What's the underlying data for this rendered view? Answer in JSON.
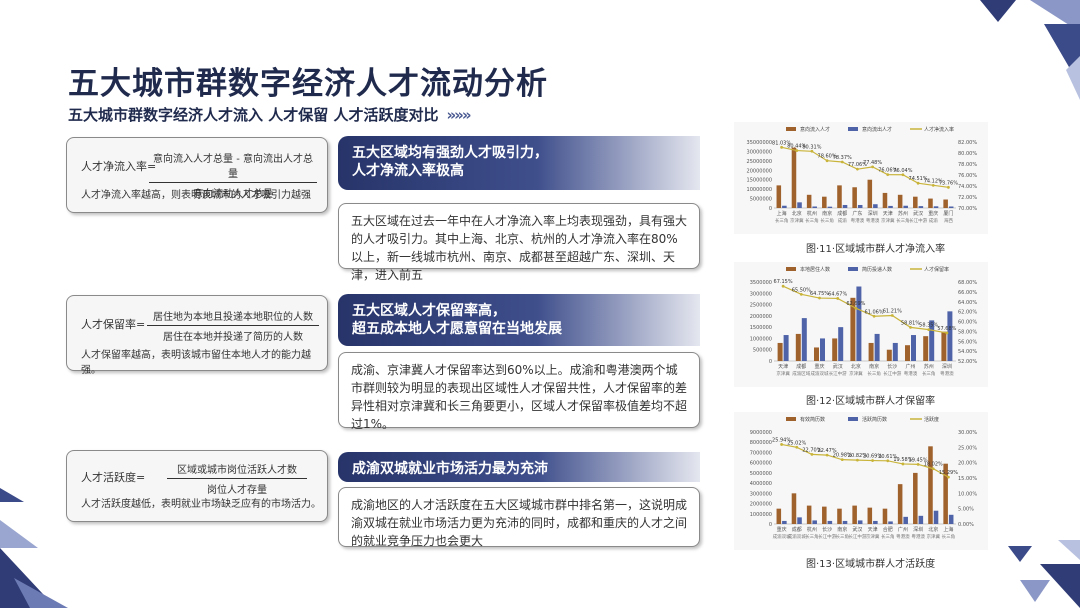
{
  "title": "五大城市群数字经济人才流动分析",
  "subtitle": "五大城市群数字经济人才流入 人才保留 人才活跃度对比",
  "subtitle_arrows": "»»»",
  "formulas": [
    {
      "lhs": "人才净流入率=",
      "num": "意向流入人才总量 - 意向流出人才总量",
      "den": "意向流动人才总量",
      "note": "人才净流入率越高，则表明该城市的人才吸引力越强"
    },
    {
      "lhs": "人才保留率=",
      "num": "居住地为本地且投递本地职位的人数",
      "den": "居住在本地并投递了简历的人数",
      "note": "人才保留率越高，表明该城市留住本地人才的能力越强。"
    },
    {
      "lhs": "人才活跃度=",
      "num": "区域或城市岗位活跃人才数",
      "den": "岗位人才存量",
      "note": "人才活跃度越低，表明就业市场缺乏应有的市场活力。"
    }
  ],
  "sections": [
    {
      "header": "五大区域均有强劲人才吸引力，\n人才净流入率极高",
      "body": "五大区域在过去一年中在人才净流入率上均表现强劲，具有强大的人才吸引力。其中上海、北京、杭州的人才净流入率在80%以上，新一线城市杭州、南京、成都甚至超越广东、深圳、天津，进入前五"
    },
    {
      "header": "五大区域人才保留率高，\n超五成本地人才愿意留在当地发展",
      "body": "成渝、京津冀人才保留率达到60%以上。成渝和粤港澳两个城市群则较为明显的表现出区域性人才保留共性，人才保留率的差异性相对京津冀和长三角要更小，区域人才保留率极值差均不超过1%。"
    },
    {
      "header": "成渝双城就业市场活力最为充沛",
      "body": "成渝地区的人才活跃度在五大区域城市群中排名第一，这说明成渝双城在就业市场活力更为充沛的同时，成都和重庆的人才之间的就业竞争压力也会更大"
    }
  ],
  "captions": [
    "图·11·区域城市群人才净流入率",
    "图·12·区域城市群人才保留率",
    "图·13·区域城市群人才活跃度"
  ],
  "chart_data": [
    {
      "type": "bar",
      "title": "",
      "legend": [
        "意向流入人才",
        "意向流出人才",
        "人才净流入率"
      ],
      "categories": [
        "上海",
        "北京",
        "杭州",
        "南京",
        "成都",
        "广东",
        "深圳",
        "天津",
        "苏州",
        "武汉",
        "重庆",
        "厦门"
      ],
      "groups": [
        "长三角",
        "京津冀",
        "长三角",
        "长三角",
        "成渝",
        "粤港澳",
        "粤港澳",
        "京津冀",
        "长三角",
        "长江中游",
        "成渝",
        "海西"
      ],
      "series": [
        {
          "name": "意向流入人才",
          "values": [
            12000000,
            32000000,
            7000000,
            6000000,
            12000000,
            11000000,
            15000000,
            8000000,
            7000000,
            6000000,
            5000000,
            4500000
          ]
        },
        {
          "name": "意向流出人才",
          "values": [
            1200000,
            3000000,
            800000,
            700000,
            1600000,
            1600000,
            2000000,
            1100000,
            1200000,
            1000000,
            900000,
            800000
          ]
        },
        {
          "name": "人才净流入率",
          "axis": "right",
          "values": [
            81.03,
            80.44,
            80.31,
            78.6,
            78.37,
            77.06,
            77.48,
            76.06,
            76.04,
            74.51,
            74.12,
            73.76
          ]
        }
      ],
      "data_labels": [
        "81.03%",
        "80.44%",
        "80.31%",
        "78.60%",
        "78.37%",
        "77.06%",
        "77.48%",
        "76.06%",
        "76.04%",
        "74.51%",
        "74.12%",
        "73.76%"
      ],
      "ylim": [
        0,
        35000000
      ],
      "y_ticks": [
        "35000000",
        "30000000",
        "25000000",
        "20000000",
        "15000000",
        "10000000",
        "5000000",
        "0"
      ],
      "y2lim": [
        70,
        82
      ],
      "y2_ticks": [
        "82.00%",
        "80.00%",
        "78.00%",
        "76.00%",
        "74.00%",
        "72.00%",
        "70.00%"
      ]
    },
    {
      "type": "bar",
      "title": "",
      "legend": [
        "本地居住人数",
        "简历投递人数",
        "人才保留率"
      ],
      "categories": [
        "天津",
        "成都",
        "重庆",
        "武汉",
        "北京",
        "南京",
        "长沙",
        "广州",
        "苏州",
        "深圳"
      ],
      "groups": [
        "京津冀",
        "成渝区域",
        "成渝双城",
        "长江中游",
        "京津冀",
        "长三角",
        "长江中游",
        "粤港澳",
        "长三角",
        "粤港澳"
      ],
      "series": [
        {
          "name": "本地居住人数",
          "values": [
            800000,
            1200000,
            600000,
            1000000,
            2800000,
            800000,
            500000,
            700000,
            1100000,
            1300000
          ]
        },
        {
          "name": "简历投递人数",
          "values": [
            1150000,
            1900000,
            1000000,
            1500000,
            3300000,
            1200000,
            800000,
            1150000,
            1800000,
            2200000
          ]
        },
        {
          "name": "人才保留率",
          "axis": "right",
          "values": [
            67.15,
            65.5,
            64.75,
            64.67,
            62.69,
            61.06,
            61.21,
            58.81,
            58.35,
            57.68
          ]
        }
      ],
      "data_labels": [
        "67.15%",
        "65.50%",
        "64.75%",
        "64.67%",
        "62.69%",
        "61.06%",
        "61.21%",
        "58.81%",
        "58.35%",
        "57.68%"
      ],
      "ylim": [
        0,
        3500000
      ],
      "y_ticks": [
        "3500000",
        "3000000",
        "2500000",
        "2000000",
        "1500000",
        "1000000",
        "500000",
        "0"
      ],
      "y2lim": [
        52,
        68
      ],
      "y2_ticks": [
        "68.00%",
        "66.00%",
        "64.00%",
        "62.00%",
        "60.00%",
        "58.00%",
        "56.00%",
        "54.00%",
        "52.00%"
      ]
    },
    {
      "type": "bar",
      "title": "",
      "legend": [
        "有效简历数",
        "活跃简历数",
        "活跃度"
      ],
      "categories": [
        "重庆",
        "成都",
        "杭州",
        "长沙",
        "南京",
        "武汉",
        "天津",
        "合肥",
        "广州",
        "深圳",
        "北京",
        "上海"
      ],
      "groups": [
        "成渝双城",
        "成渝双城",
        "长三角",
        "长江中游",
        "长三角",
        "长江中游",
        "京津冀",
        "长三角",
        "粤港澳",
        "粤港澳",
        "京津冀",
        "长三角"
      ],
      "series": [
        {
          "name": "有效简历数",
          "values": [
            1500000,
            3000000,
            1800000,
            1700000,
            1500000,
            1800000,
            1600000,
            1500000,
            3900000,
            5000000,
            7600000,
            5900000
          ]
        },
        {
          "name": "活跃简历数",
          "values": [
            300000,
            650000,
            350000,
            300000,
            300000,
            350000,
            300000,
            250000,
            700000,
            800000,
            1300000,
            900000
          ]
        },
        {
          "name": "活跃度",
          "axis": "right",
          "values": [
            25.94,
            25.02,
            22.7,
            22.47,
            20.98,
            20.82,
            20.69,
            20.61,
            19.58,
            19.45,
            18.02,
            15.29
          ]
        }
      ],
      "data_labels": [
        "25.94%",
        "25.02%",
        "22.70%",
        "22.47%",
        "20.98%",
        "20.82%",
        "20.69%",
        "20.61%",
        "19.58%",
        "19.45%",
        "18.02%",
        "15.29%"
      ],
      "ylim": [
        0,
        9000000
      ],
      "y_ticks": [
        "9000000",
        "8000000",
        "7000000",
        "6000000",
        "5000000",
        "4000000",
        "3000000",
        "2000000",
        "1000000",
        "0"
      ],
      "y2lim": [
        0,
        30
      ],
      "y2_ticks": [
        "30.00%",
        "25.00%",
        "20.00%",
        "15.00%",
        "10.00%",
        "5.00%",
        "0.00%"
      ]
    }
  ],
  "colors": {
    "navy": "#27346a",
    "bar1": "#a0622d",
    "bar2": "#4f63a8",
    "line": "#c9b43a"
  }
}
